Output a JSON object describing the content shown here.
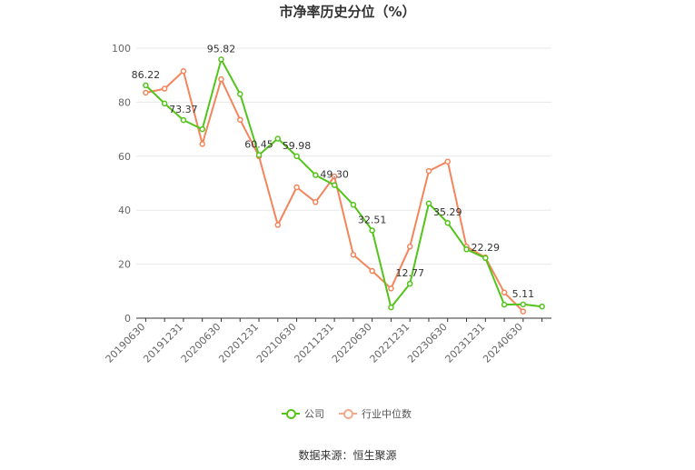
{
  "title": "市净率历史分位（%）",
  "source": "数据来源：恒生聚源",
  "chart_data": {
    "type": "line",
    "title": "市净率历史分位（%）",
    "xlabel": "",
    "ylabel": "",
    "ylim": [
      0,
      100
    ],
    "yticks": [
      0,
      20,
      40,
      60,
      80,
      100
    ],
    "grid": true,
    "legend_position": "bottom",
    "x": [
      "20190630",
      "20190930",
      "20191231",
      "20200331",
      "20200630",
      "20200930",
      "20201231",
      "20210331",
      "20210630",
      "20210930",
      "20211231",
      "20220331",
      "20220630",
      "20220930",
      "20221231",
      "20230331",
      "20230630",
      "20230930",
      "20231231",
      "20240331",
      "20240630",
      "20240930"
    ],
    "x_tick_labels": [
      "20190630",
      "20191231",
      "20200630",
      "20201231",
      "20210630",
      "20211231",
      "20220630",
      "20221231",
      "20230630",
      "20231231",
      "20240630"
    ],
    "series": [
      {
        "name": "公司",
        "color": "#52c41a",
        "values": [
          86.22,
          79.5,
          73.37,
          70.0,
          95.82,
          83.0,
          60.45,
          66.5,
          59.98,
          53.0,
          49.3,
          42.0,
          32.51,
          4.0,
          12.77,
          42.5,
          35.29,
          25.5,
          22.29,
          5.0,
          5.11,
          4.3
        ],
        "labels": {
          "0": "86.22",
          "2": "73.37",
          "4": "95.82",
          "6": "60.45",
          "8": "59.98",
          "10": "49.30",
          "12": "32.51",
          "14": "12.77",
          "16": "35.29",
          "18": "22.29",
          "20": "5.11"
        }
      },
      {
        "name": "行业中位数",
        "color": "#f4855b",
        "values": [
          83.5,
          85.0,
          91.5,
          64.5,
          88.5,
          73.5,
          60.0,
          34.5,
          48.5,
          43.0,
          52.5,
          23.5,
          17.5,
          11.0,
          26.5,
          54.5,
          58.0,
          26.5,
          22.5,
          9.5,
          2.5,
          null
        ]
      }
    ]
  }
}
